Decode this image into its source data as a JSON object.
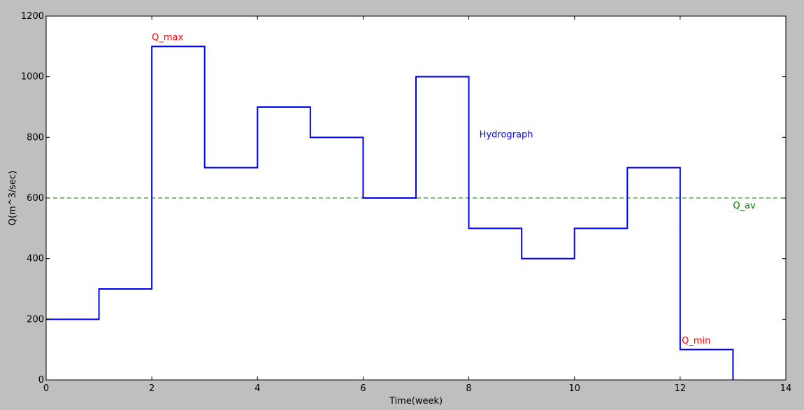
{
  "chart_data": {
    "type": "line",
    "style": "step",
    "title": "",
    "xlabel": "Time(week)",
    "ylabel": "Q(m^3/sec)",
    "xlim": [
      0,
      14
    ],
    "ylim": [
      0,
      1200
    ],
    "xticks": [
      0,
      2,
      4,
      6,
      8,
      10,
      12,
      14
    ],
    "yticks": [
      0,
      200,
      400,
      600,
      800,
      1000,
      1200
    ],
    "grid": false,
    "series": [
      {
        "color": "#0000ff",
        "x": [
          0,
          1,
          2,
          3,
          4,
          5,
          6,
          7,
          8,
          9,
          10,
          11,
          12,
          13
        ],
        "y": [
          200,
          300,
          1100,
          700,
          900,
          800,
          600,
          1000,
          500,
          400,
          500,
          700,
          100,
          0
        ]
      }
    ],
    "hlines": [
      {
        "y": 600,
        "color": "#007f00",
        "style": "dashed"
      }
    ],
    "annotations": [
      {
        "text": "Q_max",
        "x": 2.0,
        "y": 1120,
        "color": "#ff0000"
      },
      {
        "text": "Hydrograph",
        "x": 8.2,
        "y": 800,
        "color": "#0000ff"
      },
      {
        "text": "Q_av",
        "x": 13.0,
        "y": 565,
        "color": "#007f00"
      },
      {
        "text": "Q_min",
        "x": 12.03,
        "y": 120,
        "color": "#ff0000"
      }
    ]
  }
}
